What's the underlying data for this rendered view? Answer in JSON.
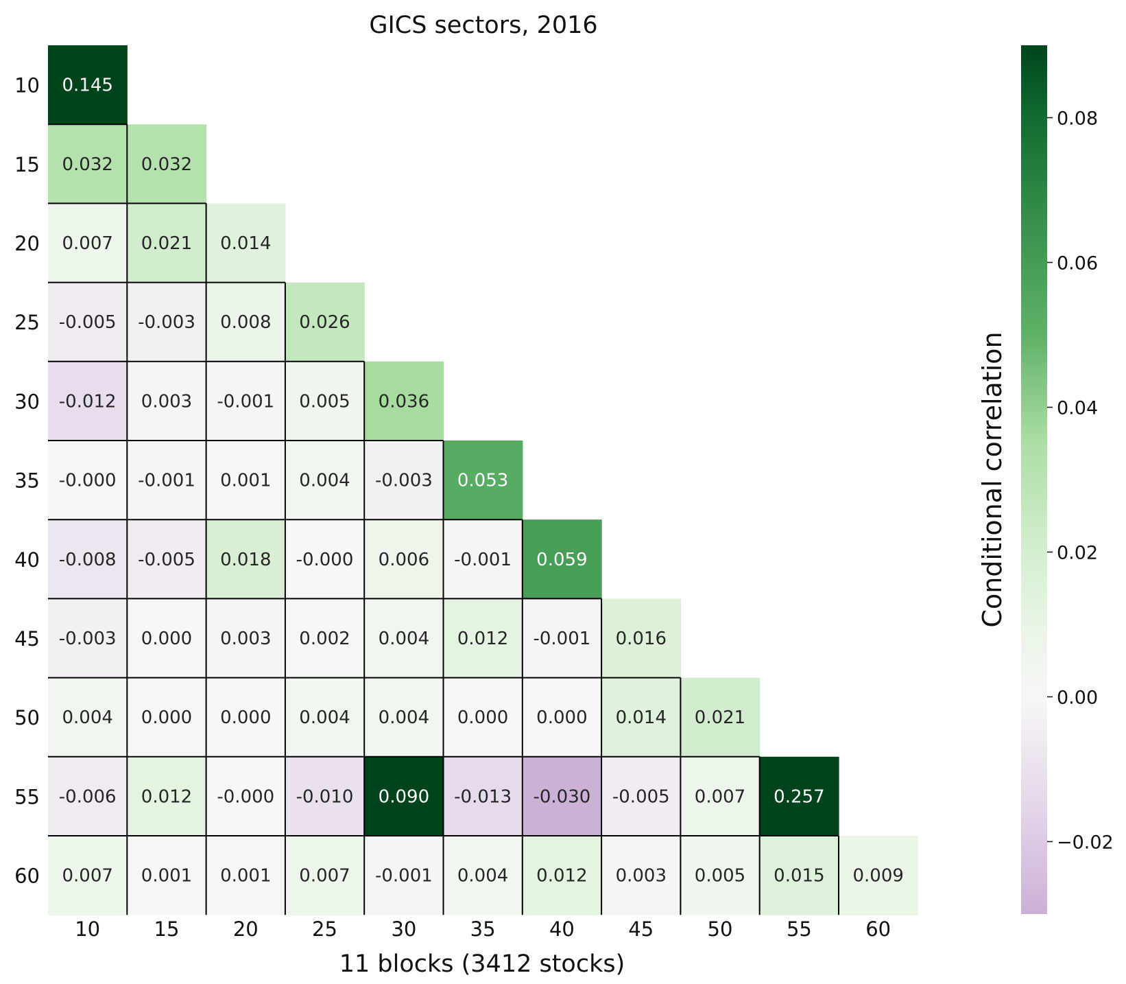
{
  "chart_data": {
    "type": "heatmap",
    "title": "GICS sectors, 2016",
    "xlabel": "11 blocks (3412 stocks)",
    "ylabel": "",
    "categories": [
      "10",
      "15",
      "20",
      "25",
      "30",
      "35",
      "40",
      "45",
      "50",
      "55",
      "60"
    ],
    "matrix_lower_triangle": [
      [
        0.145
      ],
      [
        0.032,
        0.032
      ],
      [
        0.007,
        0.021,
        0.014
      ],
      [
        -0.005,
        -0.003,
        0.008,
        0.026
      ],
      [
        -0.012,
        0.003,
        -0.001,
        0.005,
        0.036
      ],
      [
        -0.0,
        -0.001,
        0.001,
        0.004,
        -0.003,
        0.053
      ],
      [
        -0.008,
        -0.005,
        0.018,
        -0.0,
        0.006,
        -0.001,
        0.059
      ],
      [
        -0.003,
        0.0,
        0.003,
        0.002,
        0.004,
        0.012,
        -0.001,
        0.016
      ],
      [
        0.004,
        0.0,
        0.0,
        0.004,
        0.004,
        0.0,
        0.0,
        0.014,
        0.021
      ],
      [
        -0.006,
        0.012,
        -0.0,
        -0.01,
        0.09,
        -0.013,
        -0.03,
        -0.005,
        0.007,
        0.257
      ],
      [
        0.007,
        0.001,
        0.001,
        0.007,
        -0.001,
        0.004,
        0.012,
        0.003,
        0.005,
        0.015,
        0.009
      ]
    ],
    "cell_labels": [
      [
        "0.145"
      ],
      [
        "0.032",
        "0.032"
      ],
      [
        "0.007",
        "0.021",
        "0.014"
      ],
      [
        "-0.005",
        "-0.003",
        "0.008",
        "0.026"
      ],
      [
        "-0.012",
        "0.003",
        "-0.001",
        "0.005",
        "0.036"
      ],
      [
        "-0.000",
        "-0.001",
        "0.001",
        "0.004",
        "-0.003",
        "0.053"
      ],
      [
        "-0.008",
        "-0.005",
        "0.018",
        "-0.000",
        "0.006",
        "-0.001",
        "0.059"
      ],
      [
        "-0.003",
        "0.000",
        "0.003",
        "0.002",
        "0.004",
        "0.012",
        "-0.001",
        "0.016"
      ],
      [
        "0.004",
        "0.000",
        "0.000",
        "0.004",
        "0.004",
        "0.000",
        "0.000",
        "0.014",
        "0.021"
      ],
      [
        "-0.006",
        "0.012",
        "-0.000",
        "-0.010",
        "0.090",
        "-0.013",
        "-0.030",
        "-0.005",
        "0.007",
        "0.257"
      ],
      [
        "0.007",
        "0.001",
        "0.001",
        "0.007",
        "-0.001",
        "0.004",
        "0.012",
        "0.003",
        "0.005",
        "0.015",
        "0.009"
      ]
    ],
    "colorbar": {
      "label": "Conditional correlation",
      "vmin": -0.03,
      "vmax": 0.09,
      "ticks": [
        -0.02,
        0.0,
        0.02,
        0.04,
        0.06,
        0.08
      ],
      "tick_labels": [
        "−0.02",
        "0.00",
        "0.02",
        "0.04",
        "0.06",
        "0.08"
      ]
    },
    "colormap": "PRGn-diverging",
    "block_borders": "black outlines around diagonal-aligned blocks"
  }
}
